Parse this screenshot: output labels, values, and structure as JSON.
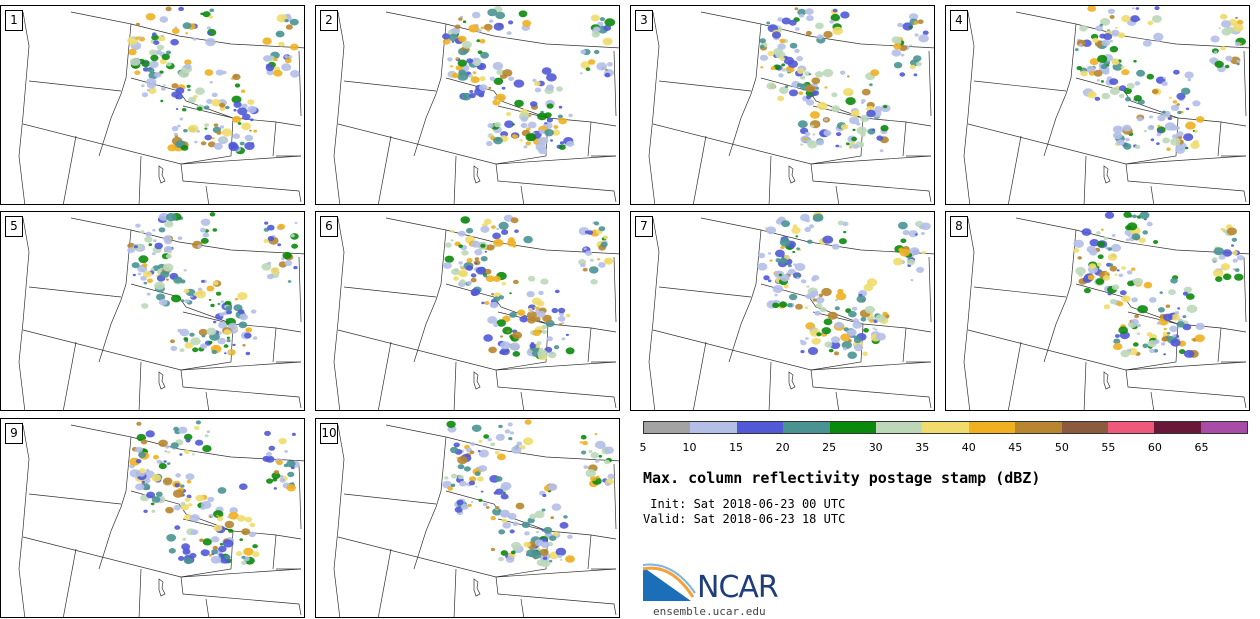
{
  "panels": [
    {
      "label": "1"
    },
    {
      "label": "2"
    },
    {
      "label": "3"
    },
    {
      "label": "4"
    },
    {
      "label": "5"
    },
    {
      "label": "6"
    },
    {
      "label": "7"
    },
    {
      "label": "8"
    },
    {
      "label": "9"
    },
    {
      "label": "10"
    }
  ],
  "colorbar": {
    "colors": [
      "#a3a3a3",
      "#b4bfe8",
      "#5159d6",
      "#4a9393",
      "#0a8a0a",
      "#bcd8b8",
      "#f0dc6c",
      "#f0b020",
      "#b8862e",
      "#8c5a3c",
      "#f05a7a",
      "#6a1838",
      "#a84ca8"
    ],
    "tick_labels": [
      "5",
      "10",
      "15",
      "20",
      "25",
      "30",
      "35",
      "40",
      "45",
      "50",
      "55",
      "60",
      "65"
    ]
  },
  "title": "Max. column reflectivity postage stamp (dBZ)",
  "init_text": " Init: Sat 2018-06-23 00 UTC",
  "valid_text": "Valid: Sat 2018-06-23 18 UTC",
  "logo_text": "NCAR",
  "website": "ensemble.ucar.edu"
}
